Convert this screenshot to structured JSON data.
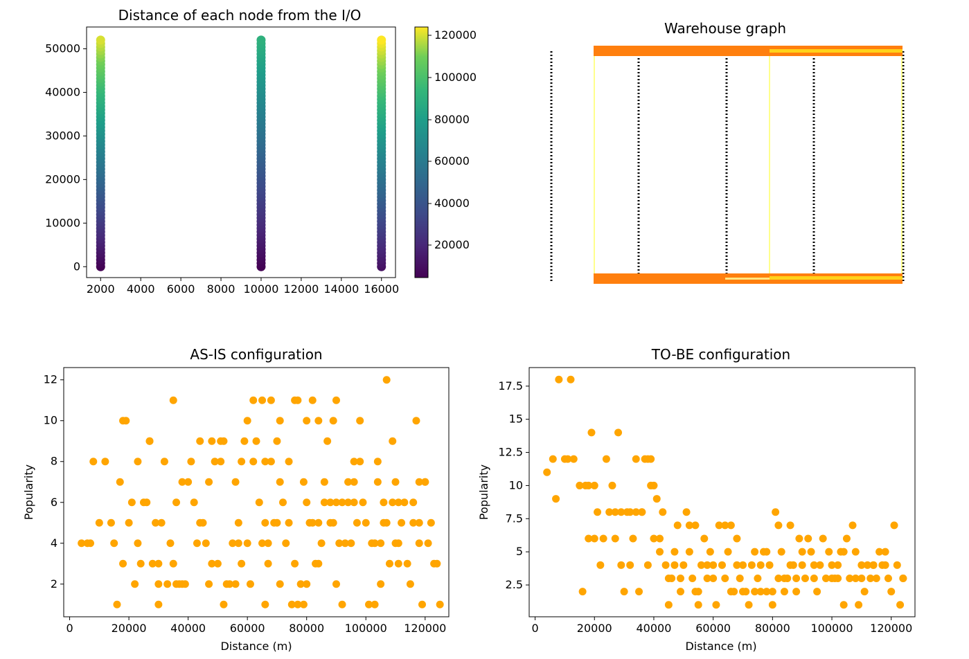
{
  "panels": {
    "distance": {
      "title": "Distance of each node from the I/O",
      "colorbar_ticks": [
        "20000",
        "40000",
        "60000",
        "80000",
        "100000",
        "120000"
      ]
    },
    "graph": {
      "title": "Warehouse graph"
    },
    "asis": {
      "title": "AS-IS configuration"
    },
    "tobe": {
      "title": "TO-BE configuration"
    }
  },
  "chart_data": [
    {
      "type": "scatter",
      "title": "Distance of each node from the I/O",
      "xlim": [
        1300,
        16700
      ],
      "ylim": [
        -2500,
        55000
      ],
      "xticks": [
        2000,
        4000,
        6000,
        8000,
        10000,
        12000,
        14000,
        16000
      ],
      "yticks": [
        0,
        10000,
        20000,
        30000,
        40000,
        50000
      ],
      "x_columns": [
        2000,
        10000,
        16000
      ],
      "y_range": [
        0,
        52000
      ],
      "colormap": "viridis",
      "color_range": [
        4000,
        124000
      ],
      "colorbar_ticks": [
        20000,
        40000,
        60000,
        80000,
        100000,
        120000
      ],
      "color_note": "colour = distance from I/O: column 2000 spans ~4000–120000, column 10000 ~4000–90000, column 16000 ~10000–124000"
    },
    {
      "type": "network",
      "title": "Warehouse graph",
      "axes": "off",
      "vertical_aisles": 6,
      "edge_colors": [
        "#000000",
        "#ff7f0e",
        "#ffd21a",
        "#ffff66"
      ]
    },
    {
      "type": "scatter",
      "title": "AS-IS configuration",
      "xlabel": "Distance (m)",
      "ylabel": "Popularity",
      "xlim": [
        -2000,
        128000
      ],
      "ylim": [
        0.4,
        12.6
      ],
      "xticks": [
        0,
        20000,
        40000,
        60000,
        80000,
        100000,
        120000
      ],
      "yticks": [
        2,
        4,
        6,
        8,
        10,
        12
      ],
      "color": "#ffa500",
      "points": [
        [
          4000,
          4
        ],
        [
          6000,
          4
        ],
        [
          7000,
          4
        ],
        [
          8000,
          8
        ],
        [
          10000,
          5
        ],
        [
          12000,
          8
        ],
        [
          14000,
          5
        ],
        [
          15000,
          4
        ],
        [
          16000,
          1
        ],
        [
          17000,
          7
        ],
        [
          18000,
          3
        ],
        [
          19000,
          10
        ],
        [
          20000,
          5
        ],
        [
          21000,
          6
        ],
        [
          22000,
          2
        ],
        [
          23000,
          4
        ],
        [
          23000,
          8
        ],
        [
          24000,
          3
        ],
        [
          25000,
          6
        ],
        [
          26000,
          6
        ],
        [
          27000,
          9
        ],
        [
          28000,
          3
        ],
        [
          29000,
          5
        ],
        [
          30000,
          3
        ],
        [
          30000,
          1
        ],
        [
          31000,
          5
        ],
        [
          32000,
          8
        ],
        [
          33000,
          2
        ],
        [
          34000,
          4
        ],
        [
          35000,
          3
        ],
        [
          35000,
          11
        ],
        [
          36000,
          6
        ],
        [
          37000,
          2
        ],
        [
          38000,
          7
        ],
        [
          39000,
          2
        ],
        [
          40000,
          7
        ],
        [
          41000,
          8
        ],
        [
          42000,
          6
        ],
        [
          43000,
          4
        ],
        [
          44000,
          5
        ],
        [
          45000,
          5
        ],
        [
          46000,
          4
        ],
        [
          47000,
          7
        ],
        [
          48000,
          3
        ],
        [
          49000,
          8
        ],
        [
          50000,
          3
        ],
        [
          51000,
          8
        ],
        [
          51000,
          9
        ],
        [
          52000,
          1
        ],
        [
          53000,
          2
        ],
        [
          54000,
          2
        ],
        [
          55000,
          4
        ],
        [
          56000,
          7
        ],
        [
          57000,
          4
        ],
        [
          58000,
          8
        ],
        [
          59000,
          9
        ],
        [
          60000,
          4
        ],
        [
          61000,
          2
        ],
        [
          62000,
          8
        ],
        [
          63000,
          9
        ],
        [
          64000,
          6
        ],
        [
          65000,
          4
        ],
        [
          66000,
          1
        ],
        [
          67000,
          4
        ],
        [
          68000,
          8
        ],
        [
          69000,
          5
        ],
        [
          70000,
          5
        ],
        [
          71000,
          7
        ],
        [
          71000,
          10
        ],
        [
          72000,
          6
        ],
        [
          73000,
          4
        ],
        [
          74000,
          8
        ],
        [
          75000,
          1
        ],
        [
          76000,
          11
        ],
        [
          77000,
          11
        ],
        [
          78000,
          2
        ],
        [
          79000,
          7
        ],
        [
          80000,
          6
        ],
        [
          80000,
          2
        ],
        [
          81000,
          5
        ],
        [
          82000,
          11
        ],
        [
          83000,
          3
        ],
        [
          84000,
          3
        ],
        [
          85000,
          4
        ],
        [
          86000,
          7
        ],
        [
          87000,
          9
        ],
        [
          88000,
          5
        ],
        [
          89000,
          5
        ],
        [
          90000,
          2
        ],
        [
          91000,
          4
        ],
        [
          92000,
          1
        ],
        [
          93000,
          4
        ],
        [
          94000,
          7
        ],
        [
          95000,
          4
        ],
        [
          96000,
          7
        ],
        [
          96000,
          8
        ],
        [
          97000,
          5
        ],
        [
          98000,
          10
        ],
        [
          99000,
          6
        ],
        [
          100000,
          5
        ],
        [
          101000,
          1
        ],
        [
          102000,
          4
        ],
        [
          103000,
          1
        ],
        [
          104000,
          8
        ],
        [
          105000,
          2
        ],
        [
          106000,
          5
        ],
        [
          107000,
          5
        ],
        [
          108000,
          3
        ],
        [
          109000,
          6
        ],
        [
          110000,
          4
        ],
        [
          111000,
          4
        ],
        [
          112000,
          5
        ],
        [
          113000,
          6
        ],
        [
          114000,
          3
        ],
        [
          115000,
          2
        ],
        [
          116000,
          6
        ],
        [
          117000,
          10
        ],
        [
          118000,
          4
        ],
        [
          119000,
          1
        ],
        [
          120000,
          7
        ],
        [
          121000,
          4
        ],
        [
          122000,
          5
        ],
        [
          123000,
          3
        ],
        [
          124000,
          3
        ],
        [
          125000,
          1
        ],
        [
          60000,
          10
        ],
        [
          62000,
          11
        ],
        [
          65000,
          11
        ],
        [
          68000,
          11
        ],
        [
          80000,
          10
        ],
        [
          84000,
          10
        ],
        [
          89000,
          10
        ],
        [
          90000,
          11
        ],
        [
          107000,
          12
        ],
        [
          104000,
          7
        ],
        [
          109000,
          9
        ],
        [
          110000,
          7
        ],
        [
          118000,
          7
        ],
        [
          120000,
          7
        ],
        [
          18000,
          10
        ],
        [
          27000,
          9
        ],
        [
          44000,
          9
        ],
        [
          48000,
          9
        ],
        [
          52000,
          9
        ],
        [
          66000,
          8
        ],
        [
          70000,
          9
        ],
        [
          98000,
          8
        ],
        [
          86000,
          6
        ],
        [
          88000,
          6
        ],
        [
          90000,
          6
        ],
        [
          92000,
          6
        ],
        [
          94000,
          6
        ],
        [
          96000,
          6
        ],
        [
          103000,
          4
        ],
        [
          105000,
          4
        ],
        [
          111000,
          3
        ],
        [
          57000,
          5
        ],
        [
          66000,
          5
        ],
        [
          74000,
          5
        ],
        [
          82000,
          5
        ],
        [
          84000,
          5
        ],
        [
          58000,
          3
        ],
        [
          67000,
          3
        ],
        [
          76000,
          3
        ],
        [
          30000,
          2
        ],
        [
          36000,
          2
        ],
        [
          38000,
          2
        ],
        [
          47000,
          2
        ],
        [
          56000,
          2
        ],
        [
          71000,
          2
        ],
        [
          77000,
          1
        ],
        [
          79000,
          1
        ],
        [
          106000,
          6
        ],
        [
          111000,
          6
        ],
        [
          116000,
          5
        ],
        [
          118000,
          5
        ]
      ]
    },
    {
      "type": "scatter",
      "title": "TO-BE configuration",
      "xlabel": "Distance (m)",
      "ylabel": "Popularity",
      "xlim": [
        -2000,
        128000
      ],
      "ylim": [
        0.1,
        18.9
      ],
      "xticks": [
        0,
        20000,
        40000,
        60000,
        80000,
        100000,
        120000
      ],
      "yticks": [
        2.5,
        5.0,
        7.5,
        10.0,
        12.5,
        15.0,
        17.5
      ],
      "color": "#ffa500",
      "points": [
        [
          4000,
          11
        ],
        [
          6000,
          12
        ],
        [
          7000,
          9
        ],
        [
          8000,
          18
        ],
        [
          10000,
          12
        ],
        [
          12000,
          18
        ],
        [
          13000,
          12
        ],
        [
          15000,
          10
        ],
        [
          16000,
          2
        ],
        [
          17000,
          10
        ],
        [
          18000,
          6
        ],
        [
          19000,
          14
        ],
        [
          20000,
          6
        ],
        [
          21000,
          8
        ],
        [
          22000,
          4
        ],
        [
          23000,
          6
        ],
        [
          24000,
          12
        ],
        [
          25000,
          8
        ],
        [
          26000,
          10
        ],
        [
          27000,
          6
        ],
        [
          28000,
          14
        ],
        [
          29000,
          4
        ],
        [
          30000,
          2
        ],
        [
          31000,
          8
        ],
        [
          32000,
          4
        ],
        [
          33000,
          6
        ],
        [
          34000,
          12
        ],
        [
          35000,
          2
        ],
        [
          36000,
          8
        ],
        [
          37000,
          12
        ],
        [
          38000,
          4
        ],
        [
          39000,
          10
        ],
        [
          40000,
          6
        ],
        [
          41000,
          9
        ],
        [
          42000,
          5
        ],
        [
          43000,
          8
        ],
        [
          44000,
          4
        ],
        [
          45000,
          1
        ],
        [
          46000,
          3
        ],
        [
          47000,
          4
        ],
        [
          48000,
          7
        ],
        [
          49000,
          2
        ],
        [
          50000,
          4
        ],
        [
          51000,
          8
        ],
        [
          52000,
          5
        ],
        [
          53000,
          3
        ],
        [
          54000,
          7
        ],
        [
          55000,
          1
        ],
        [
          56000,
          4
        ],
        [
          57000,
          6
        ],
        [
          58000,
          3
        ],
        [
          59000,
          5
        ],
        [
          60000,
          3
        ],
        [
          61000,
          1
        ],
        [
          62000,
          7
        ],
        [
          63000,
          4
        ],
        [
          64000,
          3
        ],
        [
          65000,
          5
        ],
        [
          66000,
          7
        ],
        [
          67000,
          2
        ],
        [
          68000,
          6
        ],
        [
          69000,
          3
        ],
        [
          70000,
          4
        ],
        [
          71000,
          2
        ],
        [
          72000,
          1
        ],
        [
          73000,
          4
        ],
        [
          74000,
          5
        ],
        [
          75000,
          3
        ],
        [
          76000,
          2
        ],
        [
          77000,
          5
        ],
        [
          78000,
          2
        ],
        [
          79000,
          4
        ],
        [
          80000,
          1
        ],
        [
          81000,
          8
        ],
        [
          82000,
          3
        ],
        [
          83000,
          5
        ],
        [
          84000,
          2
        ],
        [
          85000,
          3
        ],
        [
          86000,
          7
        ],
        [
          87000,
          4
        ],
        [
          88000,
          3
        ],
        [
          89000,
          6
        ],
        [
          90000,
          5
        ],
        [
          91000,
          3
        ],
        [
          92000,
          6
        ],
        [
          93000,
          5
        ],
        [
          94000,
          3
        ],
        [
          95000,
          2
        ],
        [
          96000,
          4
        ],
        [
          97000,
          6
        ],
        [
          98000,
          3
        ],
        [
          99000,
          5
        ],
        [
          100000,
          4
        ],
        [
          101000,
          3
        ],
        [
          102000,
          4
        ],
        [
          103000,
          5
        ],
        [
          104000,
          1
        ],
        [
          105000,
          6
        ],
        [
          106000,
          3
        ],
        [
          107000,
          7
        ],
        [
          108000,
          5
        ],
        [
          109000,
          1
        ],
        [
          110000,
          3
        ],
        [
          111000,
          2
        ],
        [
          112000,
          4
        ],
        [
          113000,
          3
        ],
        [
          114000,
          4
        ],
        [
          115000,
          3
        ],
        [
          116000,
          5
        ],
        [
          117000,
          4
        ],
        [
          118000,
          5
        ],
        [
          119000,
          3
        ],
        [
          120000,
          2
        ],
        [
          121000,
          7
        ],
        [
          122000,
          4
        ],
        [
          123000,
          1
        ],
        [
          124000,
          3
        ],
        [
          11000,
          12
        ],
        [
          18000,
          10
        ],
        [
          20000,
          10
        ],
        [
          27000,
          8
        ],
        [
          29000,
          8
        ],
        [
          32000,
          8
        ],
        [
          34000,
          8
        ],
        [
          36000,
          8
        ],
        [
          38000,
          12
        ],
        [
          39000,
          12
        ],
        [
          40000,
          10
        ],
        [
          42000,
          6
        ],
        [
          45000,
          3
        ],
        [
          47000,
          5
        ],
        [
          49000,
          3
        ],
        [
          52000,
          7
        ],
        [
          54000,
          2
        ],
        [
          55000,
          2
        ],
        [
          58000,
          4
        ],
        [
          60000,
          4
        ],
        [
          64000,
          7
        ],
        [
          66000,
          2
        ],
        [
          68000,
          4
        ],
        [
          70000,
          2
        ],
        [
          74000,
          2
        ],
        [
          76000,
          4
        ],
        [
          78000,
          5
        ],
        [
          80000,
          2
        ],
        [
          82000,
          7
        ],
        [
          84000,
          3
        ],
        [
          86000,
          4
        ],
        [
          88000,
          2
        ],
        [
          90000,
          4
        ],
        [
          94000,
          4
        ],
        [
          100000,
          3
        ],
        [
          102000,
          3
        ],
        [
          104000,
          5
        ],
        [
          108000,
          3
        ],
        [
          110000,
          4
        ],
        [
          114000,
          4
        ],
        [
          118000,
          4
        ],
        [
          124000,
          3
        ]
      ]
    }
  ]
}
